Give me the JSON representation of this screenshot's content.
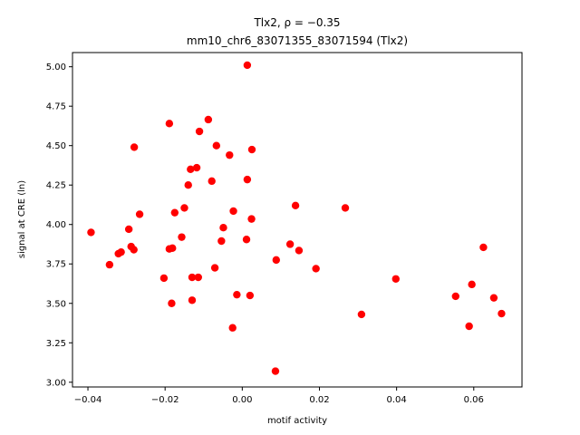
{
  "chart_data": {
    "type": "scatter",
    "title_line1": "Tlx2, ρ = −0.35",
    "title_line2": "mm10_chr6_83071355_83071594 (Tlx2)",
    "xlabel": "motif activity",
    "ylabel": "signal at CRE (ln)",
    "xlim": [
      -0.044,
      0.0725
    ],
    "ylim": [
      2.97,
      5.09
    ],
    "xticks": [
      -0.04,
      -0.02,
      0.0,
      0.02,
      0.04,
      0.06
    ],
    "xtick_labels": [
      "−0.04",
      "−0.02",
      "0.00",
      "0.02",
      "0.04",
      "0.06"
    ],
    "yticks": [
      3.0,
      3.25,
      3.5,
      3.75,
      4.0,
      4.25,
      4.5,
      4.75,
      5.0
    ],
    "ytick_labels": [
      "3.00",
      "3.25",
      "3.50",
      "3.75",
      "4.00",
      "4.25",
      "4.50",
      "4.75",
      "5.00"
    ],
    "grid": false,
    "marker_color": "#ff0000",
    "points": [
      [
        -0.0392,
        3.95
      ],
      [
        -0.0344,
        3.745
      ],
      [
        -0.0321,
        3.815
      ],
      [
        -0.0314,
        3.825
      ],
      [
        -0.0294,
        3.97
      ],
      [
        -0.0288,
        3.86
      ],
      [
        -0.0281,
        3.84
      ],
      [
        -0.028,
        4.49
      ],
      [
        -0.0266,
        4.065
      ],
      [
        -0.0203,
        3.66
      ],
      [
        -0.0189,
        3.845
      ],
      [
        -0.0189,
        4.64
      ],
      [
        -0.0183,
        3.5
      ],
      [
        -0.0181,
        3.85
      ],
      [
        -0.0175,
        4.075
      ],
      [
        -0.0157,
        3.92
      ],
      [
        -0.015,
        4.105
      ],
      [
        -0.014,
        4.25
      ],
      [
        -0.0134,
        4.35
      ],
      [
        -0.013,
        3.665
      ],
      [
        -0.013,
        3.52
      ],
      [
        -0.0118,
        4.36
      ],
      [
        -0.0114,
        3.665
      ],
      [
        -0.0111,
        4.59
      ],
      [
        -0.0088,
        4.665
      ],
      [
        -0.0079,
        4.275
      ],
      [
        -0.0071,
        3.725
      ],
      [
        -0.0067,
        4.5
      ],
      [
        -0.0054,
        3.895
      ],
      [
        -0.0049,
        3.98
      ],
      [
        -0.0033,
        4.44
      ],
      [
        -0.0025,
        3.345
      ],
      [
        -0.0023,
        4.085
      ],
      [
        -0.0014,
        3.555
      ],
      [
        0.0011,
        3.905
      ],
      [
        0.0013,
        5.01
      ],
      [
        0.0013,
        4.285
      ],
      [
        0.002,
        3.55
      ],
      [
        0.0024,
        4.035
      ],
      [
        0.0025,
        4.475
      ],
      [
        0.0086,
        3.07
      ],
      [
        0.0088,
        3.775
      ],
      [
        0.0124,
        3.875
      ],
      [
        0.0138,
        4.12
      ],
      [
        0.0147,
        3.835
      ],
      [
        0.0191,
        3.72
      ],
      [
        0.0267,
        4.105
      ],
      [
        0.0309,
        3.43
      ],
      [
        0.0398,
        3.655
      ],
      [
        0.0553,
        3.545
      ],
      [
        0.0588,
        3.355
      ],
      [
        0.0595,
        3.62
      ],
      [
        0.0625,
        3.855
      ],
      [
        0.0652,
        3.535
      ],
      [
        0.0672,
        3.435
      ]
    ]
  }
}
